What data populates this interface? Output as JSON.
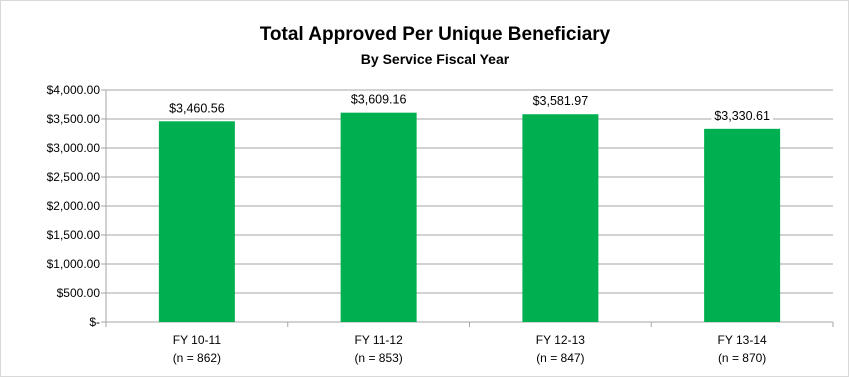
{
  "chart_data": {
    "type": "bar",
    "title": "Total Approved Per Unique Beneficiary",
    "subtitle": "By Service Fiscal Year",
    "categories": [
      "FY 10-11",
      "FY 11-12",
      "FY 12-13",
      "FY 13-14"
    ],
    "category_sublabels": [
      "(n = 862)",
      "(n = 853)",
      "(n = 847)",
      "(n = 870)"
    ],
    "values": [
      3460.56,
      3609.16,
      3581.97,
      3330.61
    ],
    "data_labels": [
      "$3,460.56",
      "$3,609.16",
      "$3,581.97",
      "$3,330.61"
    ],
    "ylim": [
      0,
      4000
    ],
    "y_ticks": [
      0,
      500,
      1000,
      1500,
      2000,
      2500,
      3000,
      3500,
      4000
    ],
    "y_tick_labels": [
      "$-",
      "$500.00",
      "$1,000.00",
      "$1,500.00",
      "$2,000.00",
      "$2,500.00",
      "$3,000.00",
      "$3,500.00",
      "$4,000.00"
    ],
    "grid": true,
    "legend": "none",
    "bar_color": "#00b050",
    "grid_color": "#a6a6a6"
  }
}
